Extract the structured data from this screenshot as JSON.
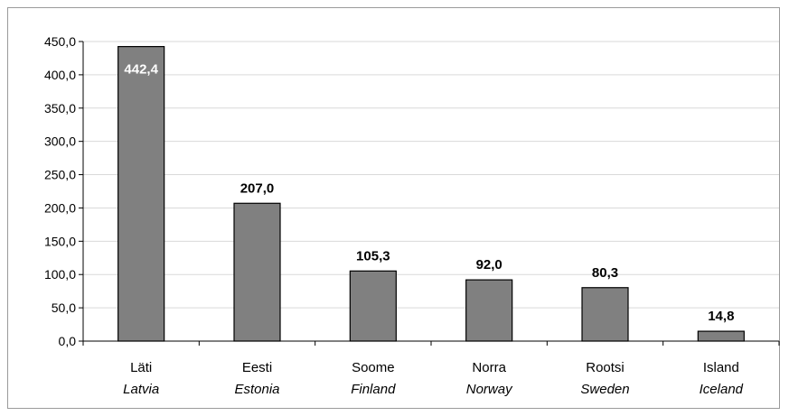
{
  "chart_data": {
    "type": "bar",
    "categories": [
      {
        "primary": "Läti",
        "secondary": "Latvia"
      },
      {
        "primary": "Eesti",
        "secondary": "Estonia"
      },
      {
        "primary": "Soome",
        "secondary": "Finland"
      },
      {
        "primary": "Norra",
        "secondary": "Norway"
      },
      {
        "primary": "Rootsi",
        "secondary": "Sweden"
      },
      {
        "primary": "Island",
        "secondary": "Iceland"
      }
    ],
    "values": [
      442.4,
      207.0,
      105.3,
      92.0,
      80.3,
      14.8
    ],
    "data_labels": [
      "442,4",
      "207,0",
      "105,3",
      "92,0",
      "80,3",
      "14,8"
    ],
    "ylim": [
      0,
      450
    ],
    "yticks": [
      "0,0",
      "50,0",
      "100,0",
      "150,0",
      "200,0",
      "250,0",
      "300,0",
      "350,0",
      "400,0",
      "450,0"
    ],
    "grid": true,
    "bar_color": "#808080",
    "title": "",
    "xlabel": "",
    "ylabel": ""
  }
}
